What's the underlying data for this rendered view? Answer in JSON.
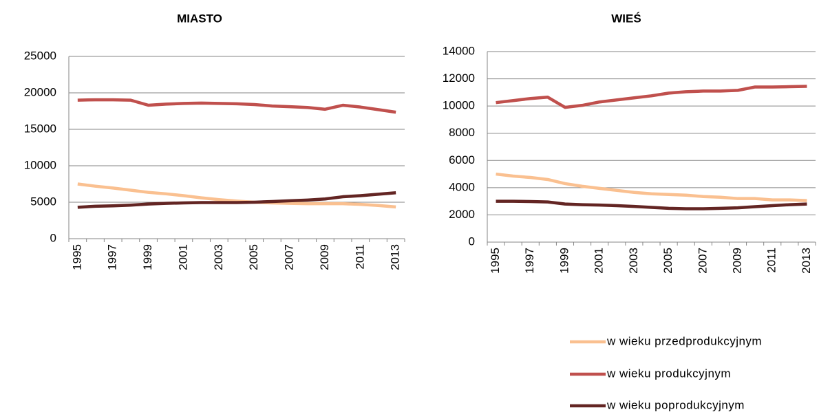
{
  "chart_data": [
    {
      "type": "line",
      "title": "MIASTO",
      "categories": [
        "1995",
        null,
        "1997",
        null,
        "1999",
        null,
        "2001",
        null,
        "2003",
        null,
        "2005",
        null,
        "2007",
        null,
        "2009",
        null,
        "2011",
        null,
        "2013"
      ],
      "ylim": [
        0,
        25000
      ],
      "yticks": [
        0,
        5000,
        10000,
        15000,
        20000,
        25000
      ],
      "grid": true,
      "series": [
        {
          "name": "w wieku przedprodukcyjnym",
          "color": "#fac090",
          "values": [
            7500,
            7200,
            6950,
            6650,
            6350,
            6150,
            5900,
            5600,
            5350,
            5150,
            5000,
            4900,
            4850,
            4800,
            4800,
            4800,
            4700,
            4550,
            4350
          ]
        },
        {
          "name": "w wieku produkcyjnym",
          "color": "#c0504d",
          "values": [
            19000,
            19050,
            19050,
            19000,
            18300,
            18450,
            18550,
            18600,
            18550,
            18500,
            18400,
            18200,
            18100,
            18000,
            17750,
            18300,
            18050,
            17700,
            17350
          ]
        },
        {
          "name": "w wieku poprodukcyjnym",
          "color": "#632523",
          "values": [
            4300,
            4450,
            4500,
            4600,
            4750,
            4850,
            4900,
            4950,
            4950,
            4950,
            5000,
            5100,
            5200,
            5300,
            5450,
            5750,
            5900,
            6100,
            6300
          ]
        }
      ]
    },
    {
      "type": "line",
      "title": "WIEŚ",
      "categories": [
        "1995",
        null,
        "1997",
        null,
        "1999",
        null,
        "2001",
        null,
        "2003",
        null,
        "2005",
        null,
        "2007",
        null,
        "2009",
        null,
        "2011",
        null,
        "2013"
      ],
      "ylim": [
        0,
        14000
      ],
      "yticks": [
        0,
        2000,
        4000,
        6000,
        8000,
        10000,
        12000,
        14000
      ],
      "grid": true,
      "series": [
        {
          "name": "w wieku przedprodukcyjnym",
          "color": "#fac090",
          "values": [
            5000,
            4850,
            4750,
            4600,
            4300,
            4100,
            3950,
            3800,
            3650,
            3550,
            3500,
            3450,
            3350,
            3300,
            3200,
            3200,
            3100,
            3100,
            3050
          ]
        },
        {
          "name": "w wieku produkcyjnym",
          "color": "#c0504d",
          "values": [
            10250,
            10400,
            10550,
            10650,
            9900,
            10050,
            10300,
            10450,
            10600,
            10750,
            10950,
            11050,
            11100,
            11100,
            11150,
            11400,
            11400,
            11420,
            11450
          ]
        },
        {
          "name": "w wieku poprodukcyjnym",
          "color": "#632523",
          "values": [
            3000,
            3000,
            2980,
            2950,
            2800,
            2750,
            2720,
            2680,
            2620,
            2550,
            2480,
            2450,
            2450,
            2480,
            2520,
            2600,
            2680,
            2750,
            2800
          ]
        }
      ]
    }
  ]
}
